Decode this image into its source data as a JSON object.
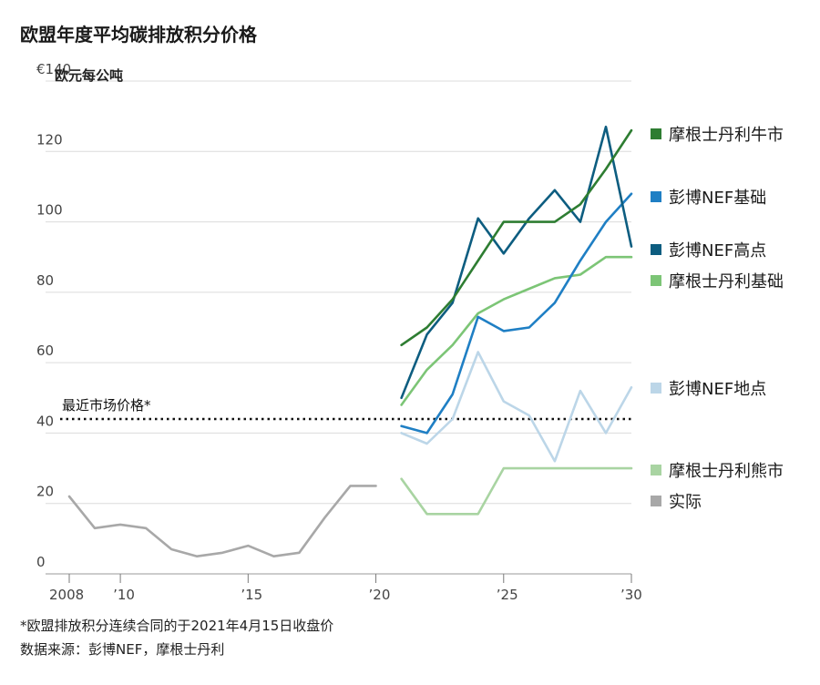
{
  "chart_data": {
    "type": "line",
    "title": "欧盟年度平均碳排放积分价格",
    "unit_label": "欧元每公吨",
    "y_ticks": [
      "€140",
      "120",
      "100",
      "80",
      "60",
      "40",
      "20",
      "0"
    ],
    "y_tick_values": [
      140,
      120,
      100,
      80,
      60,
      40,
      20,
      0
    ],
    "ylim": [
      0,
      140
    ],
    "xlim": [
      2008,
      2030
    ],
    "x_ticks": [
      {
        "year": 2008,
        "label": "2008"
      },
      {
        "year": 2010,
        "label": "’10"
      },
      {
        "year": 2015,
        "label": "’15"
      },
      {
        "year": 2020,
        "label": "’20"
      },
      {
        "year": 2025,
        "label": "’25"
      },
      {
        "year": 2030,
        "label": "’30"
      }
    ],
    "reference_line": {
      "label": "最近市场价格*",
      "value": 44
    },
    "series": [
      {
        "name": "摩根士丹利牛市",
        "color": "#2e7d32",
        "x": [
          2021,
          2022,
          2023,
          2024,
          2025,
          2026,
          2027,
          2028,
          2029,
          2030
        ],
        "values": [
          65,
          70,
          78,
          89,
          100,
          100,
          100,
          105,
          115,
          126
        ]
      },
      {
        "name": "彭博NEF基础",
        "color": "#1f7fc4",
        "x": [
          2021,
          2022,
          2023,
          2024,
          2025,
          2026,
          2027,
          2028,
          2029,
          2030
        ],
        "values": [
          42,
          40,
          51,
          73,
          69,
          70,
          77,
          89,
          100,
          108
        ]
      },
      {
        "name": "彭博NEF高点",
        "color": "#0d5d80",
        "x": [
          2021,
          2022,
          2023,
          2024,
          2025,
          2026,
          2027,
          2028,
          2029,
          2030
        ],
        "values": [
          50,
          68,
          77,
          101,
          91,
          101,
          109,
          100,
          127,
          93
        ]
      },
      {
        "name": "摩根士丹利基础",
        "color": "#7cc576",
        "x": [
          2021,
          2022,
          2023,
          2024,
          2025,
          2026,
          2027,
          2028,
          2029,
          2030
        ],
        "values": [
          48,
          58,
          65,
          74,
          78,
          81,
          84,
          85,
          90,
          90
        ]
      },
      {
        "name": "彭博NEF地点",
        "color": "#bcd6e8",
        "x": [
          2021,
          2022,
          2023,
          2024,
          2025,
          2026,
          2027,
          2028,
          2029,
          2030
        ],
        "values": [
          40,
          37,
          44,
          63,
          49,
          45,
          32,
          52,
          40,
          53
        ]
      },
      {
        "name": "摩根士丹利熊市",
        "color": "#a9d4a2",
        "x": [
          2021,
          2022,
          2023,
          2024,
          2025,
          2026,
          2027,
          2028,
          2029,
          2030
        ],
        "values": [
          27,
          17,
          17,
          17,
          30,
          30,
          30,
          30,
          30,
          30
        ]
      },
      {
        "name": "实际",
        "color": "#a8a8a8",
        "x": [
          2008,
          2009,
          2010,
          2011,
          2012,
          2013,
          2014,
          2015,
          2016,
          2017,
          2018,
          2019,
          2020
        ],
        "values": [
          22,
          13,
          14,
          13,
          7,
          5,
          6,
          8,
          5,
          6,
          16,
          25,
          25
        ]
      }
    ]
  },
  "footnote": "*欧盟排放积分连续合同的于2021年4月15日收盘价",
  "source": "数据来源：彭博NEF，摩根士丹利"
}
